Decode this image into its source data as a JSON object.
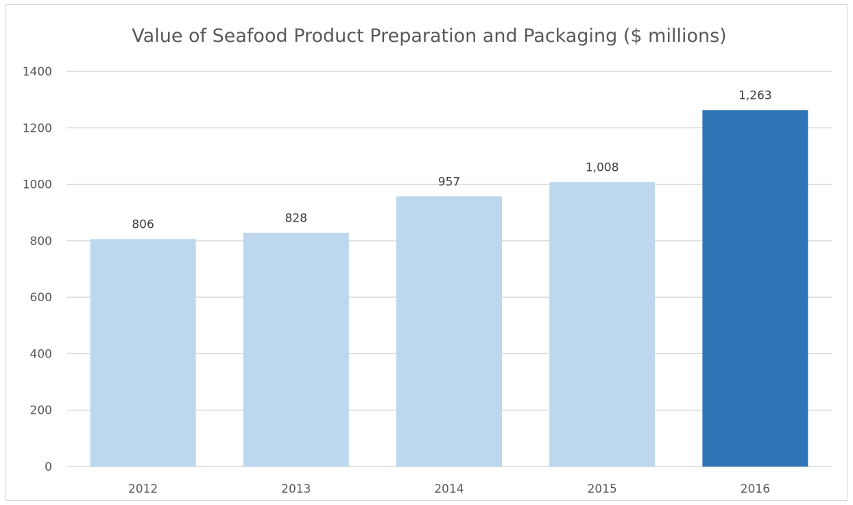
{
  "chart_data": {
    "type": "bar",
    "title": "Value of Seafood Product Preparation and Packaging ($ millions)",
    "xlabel": "",
    "ylabel": "",
    "categories": [
      "2012",
      "2013",
      "2014",
      "2015",
      "2016"
    ],
    "values": [
      806,
      828,
      957,
      1008,
      1263
    ],
    "data_labels": [
      "806",
      "828",
      "957",
      "1,008",
      "1,263"
    ],
    "ylim": [
      0,
      1400
    ],
    "yticks": [
      0,
      200,
      400,
      600,
      800,
      1000,
      1200,
      1400
    ],
    "ytick_labels": [
      "0",
      "200",
      "400",
      "600",
      "800",
      "1000",
      "1200",
      "1400"
    ],
    "grid": true,
    "legend": "none",
    "colors": {
      "bar": "#bdd7ee",
      "highlight_bar": "#2e75b6",
      "highlight_index": 4
    }
  }
}
